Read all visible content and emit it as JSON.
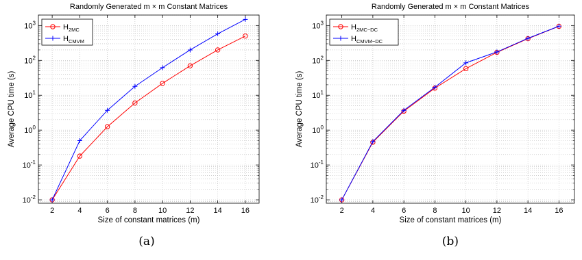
{
  "chart_data": [
    {
      "type": "line",
      "title": "Randomly Generated m × m Constant Matrices",
      "xlabel": "Size of constant matrices (m)",
      "ylabel": "Average CPU time (s)",
      "caption": "(a)",
      "x_scale": "linear",
      "y_scale": "log",
      "xlim": [
        1,
        17
      ],
      "ylim": [
        0.008,
        2000
      ],
      "x_ticks": [
        "2",
        "4",
        "6",
        "8",
        "10",
        "12",
        "14",
        "16"
      ],
      "y_ticks": [
        {
          "base": "10",
          "exp": "-2"
        },
        {
          "base": "10",
          "exp": "-1"
        },
        {
          "base": "10",
          "exp": "0"
        },
        {
          "base": "10",
          "exp": "1"
        },
        {
          "base": "10",
          "exp": "2"
        },
        {
          "base": "10",
          "exp": "3"
        }
      ],
      "grid": true,
      "legend_position": "top-left",
      "x": [
        2,
        4,
        6,
        8,
        10,
        12,
        14,
        16
      ],
      "series": [
        {
          "name": "H",
          "name_sub": "2MC",
          "color": "#ff0000",
          "marker": "circle",
          "values": [
            0.01,
            0.18,
            1.25,
            6.0,
            22,
            70,
            200,
            500
          ]
        },
        {
          "name": "H",
          "name_sub": "CMVM",
          "color": "#0000ff",
          "marker": "plus",
          "values": [
            0.01,
            0.5,
            3.7,
            18,
            62,
            200,
            580,
            1500
          ]
        }
      ]
    },
    {
      "type": "line",
      "title": "Randomly Generated m × m Constant Matrices",
      "xlabel": "Size of constant matrices (m)",
      "ylabel": "Average CPU time (s)",
      "caption": "(b)",
      "x_scale": "linear",
      "y_scale": "log",
      "xlim": [
        1,
        17
      ],
      "ylim": [
        0.008,
        2000
      ],
      "x_ticks": [
        "2",
        "4",
        "6",
        "8",
        "10",
        "12",
        "14",
        "16"
      ],
      "y_ticks": [
        {
          "base": "10",
          "exp": "-2"
        },
        {
          "base": "10",
          "exp": "-1"
        },
        {
          "base": "10",
          "exp": "0"
        },
        {
          "base": "10",
          "exp": "1"
        },
        {
          "base": "10",
          "exp": "2"
        },
        {
          "base": "10",
          "exp": "3"
        }
      ],
      "grid": true,
      "legend_position": "top-left",
      "x": [
        2,
        4,
        6,
        8,
        10,
        12,
        14,
        16
      ],
      "series": [
        {
          "name": "H",
          "name_sub": "2MC−DC",
          "color": "#ff0000",
          "marker": "circle",
          "values": [
            0.01,
            0.45,
            3.5,
            16,
            58,
            170,
            420,
            950
          ]
        },
        {
          "name": "H",
          "name_sub": "CMVM−DC",
          "color": "#0000ff",
          "marker": "plus",
          "values": [
            0.01,
            0.47,
            3.7,
            17,
            85,
            175,
            430,
            960
          ]
        }
      ]
    }
  ]
}
